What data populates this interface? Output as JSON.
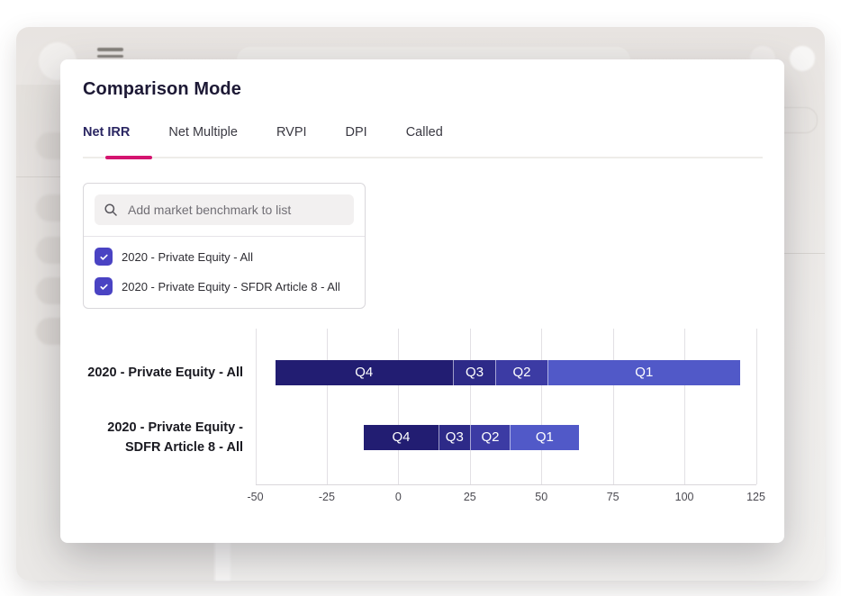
{
  "background": {
    "menu_icon": "hamburger-menu",
    "sidebar_placeholder_count": 5
  },
  "modal": {
    "title": "Comparison Mode",
    "tabs": [
      {
        "label": "Net IRR",
        "active": true
      },
      {
        "label": "Net Multiple",
        "active": false
      },
      {
        "label": "RVPI",
        "active": false
      },
      {
        "label": "DPI",
        "active": false
      },
      {
        "label": "Called",
        "active": false
      }
    ],
    "benchmark_panel": {
      "search_placeholder": "Add market benchmark to list",
      "search_value": "",
      "items": [
        {
          "label": "2020 - Private Equity - All",
          "checked": true
        },
        {
          "label": "2020 - Private Equity - SFDR Article 8 - All",
          "checked": true
        }
      ]
    }
  },
  "colors": {
    "accent_pink": "#d4146f",
    "checkbox_indigo": "#4a43c3"
  },
  "chart_data": {
    "type": "bar",
    "orientation": "horizontal",
    "stacked": true,
    "grid": true,
    "xlim": [
      -50,
      125
    ],
    "ticks": [
      -50,
      -25,
      0,
      25,
      50,
      75,
      100,
      125
    ],
    "quartile_colors": {
      "Q4": "#221d72",
      "Q3": "#2d2a88",
      "Q2": "#3c3ba4",
      "Q1": "#5159c8"
    },
    "rows": [
      {
        "label_lines": [
          "2020 - Private Equity - All"
        ],
        "segments": [
          {
            "name": "Q4",
            "from": -43,
            "to": 19
          },
          {
            "name": "Q3",
            "from": 19,
            "to": 34
          },
          {
            "name": "Q2",
            "from": 34,
            "to": 52
          },
          {
            "name": "Q1",
            "from": 52,
            "to": 119.5
          }
        ]
      },
      {
        "label_lines": [
          "2020 - Private Equity -",
          "SDFR Article 8 - All"
        ],
        "segments": [
          {
            "name": "Q4",
            "from": -12,
            "to": 14
          },
          {
            "name": "Q3",
            "from": 14,
            "to": 25
          },
          {
            "name": "Q2",
            "from": 25,
            "to": 39
          },
          {
            "name": "Q1",
            "from": 39,
            "to": 63
          }
        ]
      }
    ]
  }
}
